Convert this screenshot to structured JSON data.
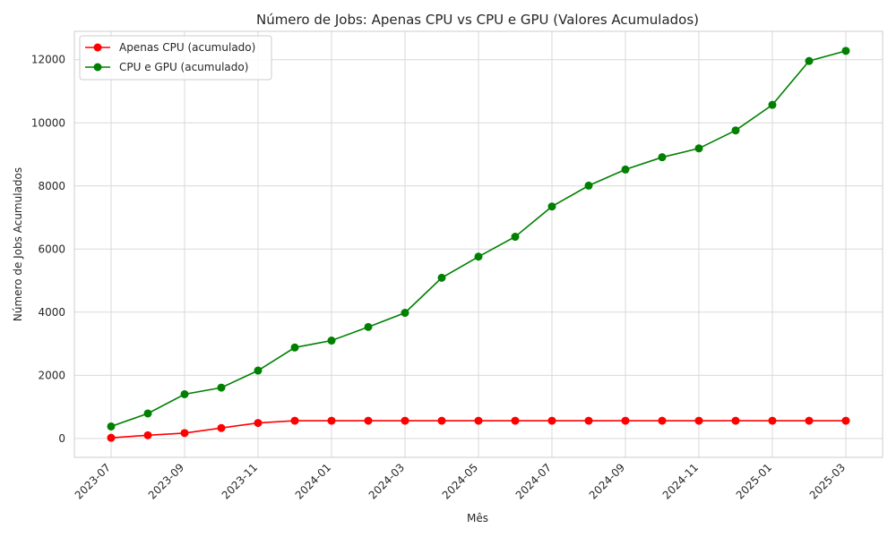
{
  "chart_data": {
    "type": "line",
    "title": "Número de Jobs: Apenas CPU vs CPU e GPU (Valores Acumulados)",
    "xlabel": "Mês",
    "ylabel": "Número de Jobs Acumulados",
    "x": [
      "2023-07",
      "2023-08",
      "2023-09",
      "2023-10",
      "2023-11",
      "2023-12",
      "2024-01",
      "2024-02",
      "2024-03",
      "2024-04",
      "2024-05",
      "2024-06",
      "2024-07",
      "2024-08",
      "2024-09",
      "2024-10",
      "2024-11",
      "2024-12",
      "2025-01",
      "2025-02",
      "2025-03"
    ],
    "x_tick_labels": [
      "2023-07",
      "2023-09",
      "2023-11",
      "2024-01",
      "2024-03",
      "2024-05",
      "2024-07",
      "2024-09",
      "2024-11",
      "2025-01",
      "2025-03"
    ],
    "y_ticks": [
      0,
      2000,
      4000,
      6000,
      8000,
      10000,
      12000
    ],
    "ylim": [
      -600,
      12900
    ],
    "grid": true,
    "legend_position": "top-left",
    "series": [
      {
        "name": "Apenas CPU (acumulado)",
        "color": "#ff0000",
        "values": [
          20,
          100,
          170,
          330,
          490,
          560,
          560,
          560,
          560,
          560,
          560,
          560,
          560,
          560,
          560,
          560,
          560,
          560,
          560,
          560,
          560
        ]
      },
      {
        "name": "CPU e GPU (acumulado)",
        "color": "#008000",
        "values": [
          380,
          790,
          1400,
          1610,
          2150,
          2880,
          3100,
          3530,
          3980,
          5090,
          5760,
          6390,
          7350,
          8010,
          8520,
          8910,
          9190,
          9760,
          10570,
          11960,
          12280
        ]
      }
    ]
  }
}
